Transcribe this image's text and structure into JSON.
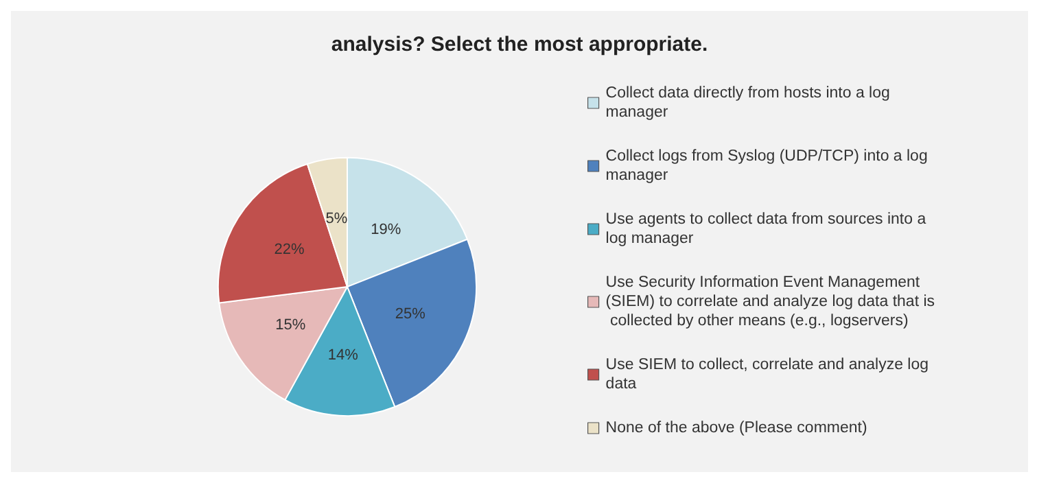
{
  "chart_data": {
    "type": "pie",
    "title": "analysis? Select the most appropriate.",
    "categories": [
      "Collect data directly from hosts into a log manager",
      "Collect logs from Syslog (UDP/TCP) into a log manager",
      "Use agents to collect data from sources into a log manager",
      "Use Security Information Event Management (SIEM) to correlate and analyze log data that is collected by other means (e.g., logservers)",
      "Use SIEM to collect, correlate and analyze log data",
      "None of the above (Please comment)"
    ],
    "values": [
      19,
      25,
      14,
      15,
      22,
      5
    ],
    "colors": [
      "#c6e2ea",
      "#4f81bd",
      "#4bacc6",
      "#e6b9b8",
      "#c0504d",
      "#ebe2c8"
    ],
    "value_labels": [
      "19%",
      "25%",
      "14%",
      "15%",
      "22%",
      "5%"
    ],
    "legend": "right"
  }
}
